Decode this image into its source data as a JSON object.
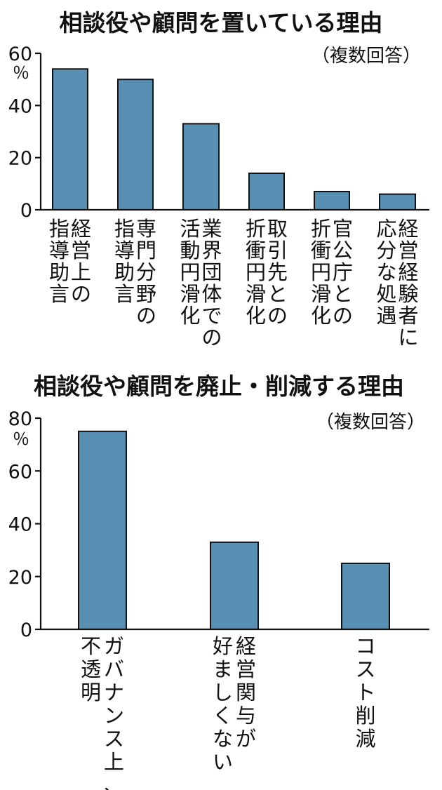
{
  "colors": {
    "bar": "#5a8fb4",
    "axis": "#111111"
  },
  "chart_data": [
    {
      "type": "bar",
      "title": "相談役や顧問を置いている理由",
      "note": "（複数回答）",
      "unit": "％",
      "ylim": [
        0,
        60
      ],
      "yticks": [
        "60",
        "40",
        "20",
        "0"
      ],
      "ytick_values": [
        60,
        40,
        20,
        0
      ],
      "categories": [
        [
          "経営上の",
          "指導助言"
        ],
        [
          "専門分野の",
          "指導助言"
        ],
        [
          "業界団体での",
          "活動円滑化"
        ],
        [
          "取引先との",
          "折衝円滑化"
        ],
        [
          "官公庁との",
          "折衝円滑化"
        ],
        [
          "経営経験者に",
          "応分な処遇"
        ]
      ],
      "values": [
        54,
        50,
        33,
        14,
        7,
        6
      ]
    },
    {
      "type": "bar",
      "title": "相談役や顧問を廃止・削減する理由",
      "note": "（複数回答）",
      "unit": "％",
      "ylim": [
        0,
        80
      ],
      "yticks": [
        "80",
        "60",
        "40",
        "20",
        "0"
      ],
      "ytick_values": [
        80,
        60,
        40,
        20,
        0
      ],
      "categories": [
        [
          "ガバナンス上、",
          "不透明"
        ],
        [
          "経営関与が",
          "好ましくない"
        ],
        [
          "コスト削減"
        ]
      ],
      "values": [
        75,
        33,
        25
      ]
    }
  ]
}
